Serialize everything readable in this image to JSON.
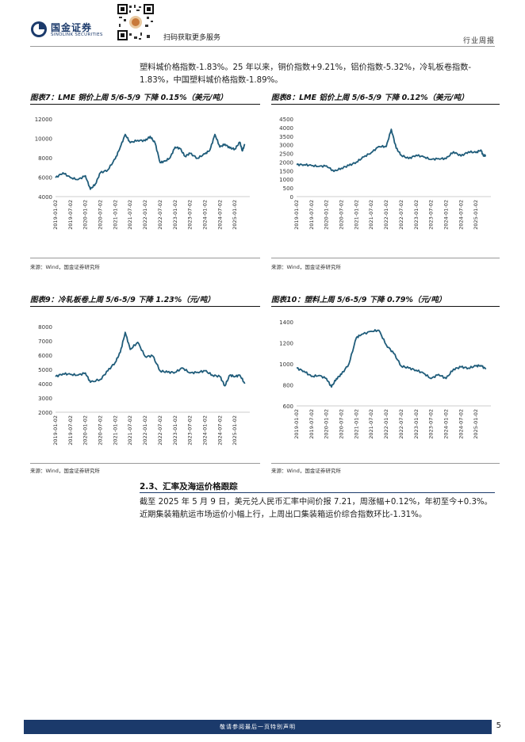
{
  "header": {
    "logo_cn": "国金证券",
    "logo_en": "SINOLINK SECURITIES",
    "scan_text": "扫码获取更多服务",
    "category": "行业周报",
    "brand_color": "#1b3a6b"
  },
  "intro": {
    "line1": "塑料城价格指数-1.83%。25 年以来，铜价指数+9.21%，铝价指数-5.32%，冷轧板卷指数-",
    "line2": "1.83%，中国塑料城价格指数-1.89%。"
  },
  "figures": [
    {
      "title": "图表7：LME 铜价上周 5/6-5/9 下降 0.15%（美元/吨）",
      "source": "来源：Wind，国金证券研究所"
    },
    {
      "title": "图表8：LME 铝价上周 5/6-5/9 下降 0.12%（美元/吨）",
      "source": "来源：Wind，国金证券研究所"
    },
    {
      "title": "图表9：冷轧板卷上周 5/6-5/9 下降 1.23%（元/吨）",
      "source": "来源：Wind，国金证券研究所"
    },
    {
      "title": "图表10：塑料上周 5/6-5/9 下降 0.79%（元/吨）",
      "source": "来源：Wind，国金证券研究所"
    }
  ],
  "section": {
    "heading": "2.3、汇率及海运价格跟踪",
    "line1": "截至 2025 年 5 月 9 日，美元兑人民币汇率中间价报 7.21，周涨幅+0.12%，年初至今+0.3%。",
    "line2": "近期集装箱航运市场运价小幅上行，上周出口集装箱运价综合指数环比-1.31%。"
  },
  "footer": {
    "disclaimer": "敬请参阅最后一页特别声明",
    "page_number": "5"
  },
  "chart_data": [
    {
      "type": "line",
      "title": "图表7：LME 铜价上周 5/6-5/9 下降 0.15%（美元/吨）",
      "color": "#1f5c7a",
      "x_ticks": [
        "2019-01-02",
        "2019-07-02",
        "2020-01-02",
        "2020-07-02",
        "2021-01-02",
        "2021-07-02",
        "2022-01-02",
        "2022-07-02",
        "2023-01-02",
        "2023-07-02",
        "2024-01-02",
        "2024-07-02",
        "2025-01-02"
      ],
      "y_ticks": [
        4000,
        6000,
        8000,
        10000,
        12000
      ],
      "ylim": [
        4000,
        12000
      ],
      "x": [
        "2019-01",
        "2019-04",
        "2019-07",
        "2019-10",
        "2020-01",
        "2020-03",
        "2020-05",
        "2020-07",
        "2020-10",
        "2021-01",
        "2021-03",
        "2021-05",
        "2021-07",
        "2021-10",
        "2022-01",
        "2022-03",
        "2022-05",
        "2022-07",
        "2022-09",
        "2022-11",
        "2023-01",
        "2023-03",
        "2023-05",
        "2023-07",
        "2023-10",
        "2024-01",
        "2024-03",
        "2024-05",
        "2024-07",
        "2024-09",
        "2024-11",
        "2025-01",
        "2025-03",
        "2025-04",
        "2025-05"
      ],
      "values": [
        5950,
        6450,
        5950,
        5750,
        6150,
        4750,
        5300,
        6450,
        6750,
        7900,
        9100,
        10400,
        9550,
        9800,
        9750,
        10200,
        9500,
        7500,
        7650,
        8000,
        9100,
        8950,
        8150,
        8450,
        7950,
        8400,
        8800,
        10400,
        9100,
        9400,
        9000,
        8900,
        9600,
        8700,
        9400
      ]
    },
    {
      "type": "line",
      "title": "图表8：LME 铝价上周 5/6-5/9 下降 0.12%（美元/吨）",
      "color": "#1f5c7a",
      "x_ticks": [
        "2019-01-02",
        "2019-07-02",
        "2020-01-02",
        "2020-07-02",
        "2021-01-02",
        "2021-07-02",
        "2022-01-02",
        "2022-07-02",
        "2023-01-02",
        "2023-07-02",
        "2024-01-02",
        "2024-07-02",
        "2025-01-02"
      ],
      "y_ticks": [
        0,
        500,
        1000,
        1500,
        2000,
        2500,
        3000,
        3500,
        4000,
        4500
      ],
      "ylim": [
        0,
        4500
      ],
      "x": [
        "2019-01",
        "2019-04",
        "2019-07",
        "2019-10",
        "2020-01",
        "2020-04",
        "2020-07",
        "2020-10",
        "2021-01",
        "2021-04",
        "2021-07",
        "2021-10",
        "2022-01",
        "2022-03",
        "2022-05",
        "2022-07",
        "2022-10",
        "2023-01",
        "2023-04",
        "2023-07",
        "2023-10",
        "2024-01",
        "2024-04",
        "2024-07",
        "2024-10",
        "2025-01",
        "2025-03",
        "2025-04",
        "2025-05"
      ],
      "values": [
        1850,
        1850,
        1800,
        1750,
        1780,
        1460,
        1650,
        1800,
        2000,
        2300,
        2550,
        2900,
        2900,
        3900,
        2800,
        2400,
        2200,
        2400,
        2300,
        2150,
        2200,
        2200,
        2600,
        2350,
        2600,
        2550,
        2700,
        2350,
        2400
      ]
    },
    {
      "type": "line",
      "title": "图表9：冷轧板卷上周 5/6-5/9 下降 1.23%（元/吨）",
      "color": "#1f5c7a",
      "x_ticks": [
        "2019-01-02",
        "2019-07-02",
        "2020-01-02",
        "2020-07-02",
        "2021-01-02",
        "2021-07-02",
        "2022-01-02",
        "2022-07-02",
        "2023-01-02",
        "2023-07-02",
        "2024-01-02",
        "2024-07-02",
        "2025-01-02"
      ],
      "y_ticks": [
        2000,
        3000,
        4000,
        5000,
        6000,
        7000,
        8000
      ],
      "ylim": [
        2000,
        8000
      ],
      "x": [
        "2019-01",
        "2019-04",
        "2019-07",
        "2019-10",
        "2020-01",
        "2020-03",
        "2020-07",
        "2020-10",
        "2021-01",
        "2021-03",
        "2021-05",
        "2021-07",
        "2021-10",
        "2022-01",
        "2022-04",
        "2022-07",
        "2022-10",
        "2023-01",
        "2023-04",
        "2023-07",
        "2023-10",
        "2024-01",
        "2024-04",
        "2024-07",
        "2024-09",
        "2024-11",
        "2025-01",
        "2025-03",
        "2025-05"
      ],
      "values": [
        4500,
        4700,
        4650,
        4600,
        4750,
        4100,
        4300,
        4900,
        5500,
        6200,
        7600,
        6400,
        6900,
        5900,
        5950,
        4900,
        4800,
        4800,
        5100,
        4750,
        4800,
        4900,
        4600,
        4500,
        3850,
        4600,
        4500,
        4600,
        4000
      ]
    },
    {
      "type": "line",
      "title": "图表10：塑料上周 5/6-5/9 下降 0.79%（元/吨）",
      "color": "#1f5c7a",
      "x_ticks": [
        "2019-01-02",
        "2019-07-02",
        "2020-01-02",
        "2020-07-02",
        "2021-01-02",
        "2021-07-02",
        "2022-01-02",
        "2022-07-02",
        "2023-01-02",
        "2023-07-02",
        "2024-01-02",
        "2024-07-02",
        "2025-01-02"
      ],
      "y_ticks": [
        600,
        800,
        1000,
        1200,
        1400
      ],
      "ylim": [
        600,
        1400
      ],
      "x": [
        "2019-01",
        "2019-04",
        "2019-07",
        "2019-10",
        "2020-01",
        "2020-03",
        "2020-05",
        "2020-07",
        "2020-10",
        "2021-01",
        "2021-03",
        "2021-07",
        "2021-10",
        "2022-01",
        "2022-04",
        "2022-07",
        "2022-10",
        "2023-01",
        "2023-04",
        "2023-07",
        "2023-10",
        "2024-01",
        "2024-04",
        "2024-07",
        "2024-10",
        "2025-01",
        "2025-03",
        "2025-05"
      ],
      "values": [
        960,
        930,
        880,
        890,
        860,
        780,
        860,
        900,
        1000,
        1250,
        1280,
        1310,
        1320,
        1180,
        1100,
        980,
        960,
        940,
        910,
        860,
        900,
        860,
        950,
        970,
        960,
        980,
        985,
        950
      ]
    }
  ]
}
